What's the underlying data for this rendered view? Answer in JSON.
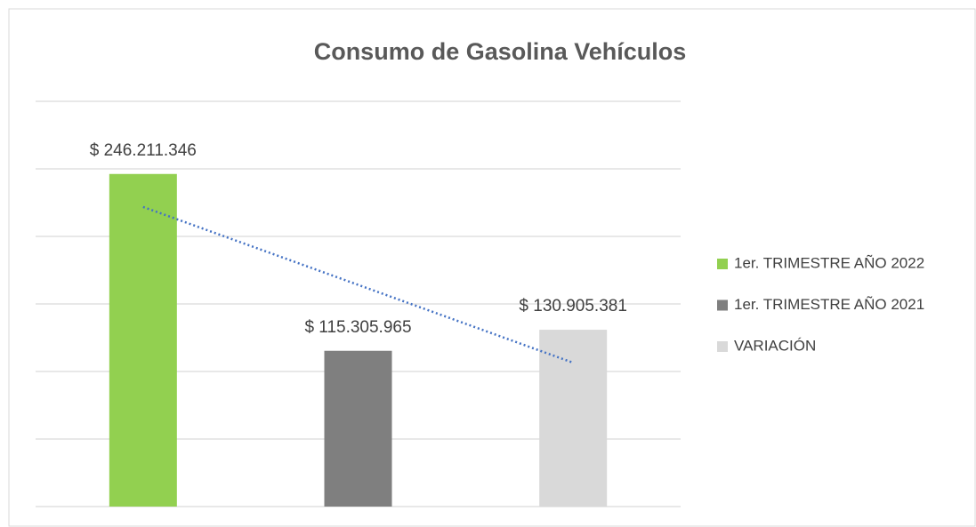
{
  "chart_data": {
    "type": "bar",
    "title": "Consumo de Gasolina Vehículos",
    "series": [
      {
        "name": "1er. TRIMESTRE AÑO 2022",
        "color": "#92d050",
        "values": [
          246211346
        ],
        "value_labels": [
          "$ 246.211.346"
        ]
      },
      {
        "name": "1er. TRIMESTRE AÑO 2021",
        "color": "#7f7f7f",
        "values": [
          115305965
        ],
        "value_labels": [
          "$ 115.305.965"
        ]
      },
      {
        "name": "VARIACIÓN",
        "color": "#d9d9d9",
        "values": [
          130905381
        ],
        "value_labels": [
          "$ 130.905.381"
        ]
      }
    ],
    "ylim": [
      0,
      300000000
    ],
    "yticks": [
      0,
      50000000,
      100000000,
      150000000,
      200000000,
      250000000,
      300000000
    ],
    "grid": true,
    "trendline": "linear",
    "trendline_color": "#4472c4",
    "legend": "right"
  }
}
